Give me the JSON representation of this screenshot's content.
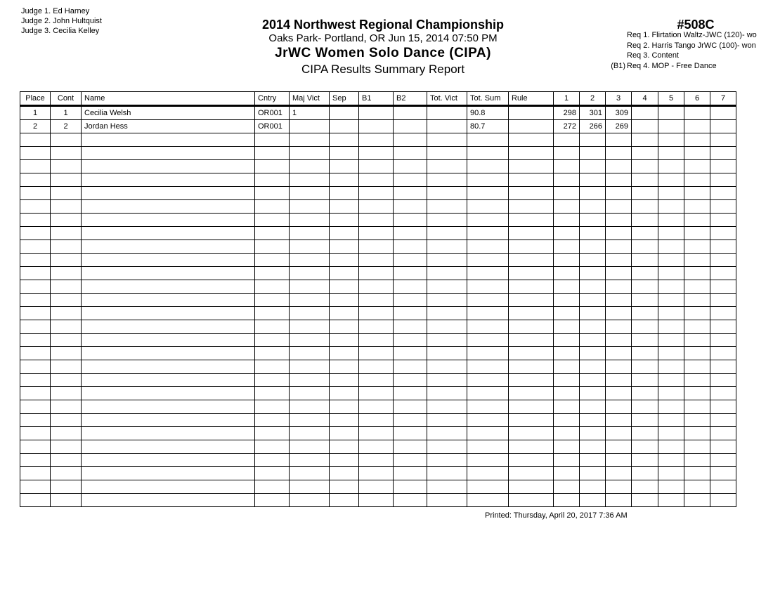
{
  "judges": [
    "Judge  1.  Ed Harney",
    "Judge  2.  John Hultquist",
    "Judge  3.  Cecilia Kelley"
  ],
  "header": {
    "title": "2014 Northwest Regional Championship",
    "location": "Oaks Park- Portland, OR  Jun 15, 2014  07:50 PM",
    "event": "JrWC Women Solo Dance (CIPA)",
    "report": "CIPA Results Summary Report",
    "event_number": "#508C"
  },
  "requirements": [
    {
      "prefix": "",
      "label": "Req  1.  Flirtation Waltz-JWC (120)- wo"
    },
    {
      "prefix": "",
      "label": "Req  2.  Harris Tango JrWC (100)- won"
    },
    {
      "prefix": "",
      "label": "Req  3.  Content"
    },
    {
      "prefix": "(B1)",
      "label": "Req  4.  MOP - Free Dance"
    }
  ],
  "table": {
    "columns": [
      "Place",
      "Cont",
      "Name",
      "Cntry",
      "Maj Vict",
      "Sep",
      "B1",
      "B2",
      "Tot. Vict",
      "Tot. Sum",
      "Rule",
      "1",
      "2",
      "3",
      "4",
      "5",
      "6",
      "7"
    ],
    "rows": [
      [
        "1",
        "1",
        "Cecilia Welsh",
        "OR001",
        "1",
        "",
        "",
        "",
        "",
        "90.8",
        "",
        "298",
        "301",
        "309",
        "",
        "",
        "",
        ""
      ],
      [
        "2",
        "2",
        "Jordan Hess",
        "OR001",
        "",
        "",
        "",
        "",
        "",
        "80.7",
        "",
        "272",
        "266",
        "269",
        "",
        "",
        "",
        ""
      ]
    ]
  },
  "footer": {
    "printed": "Printed:  Thursday, April 20, 2017  7:36 AM"
  }
}
